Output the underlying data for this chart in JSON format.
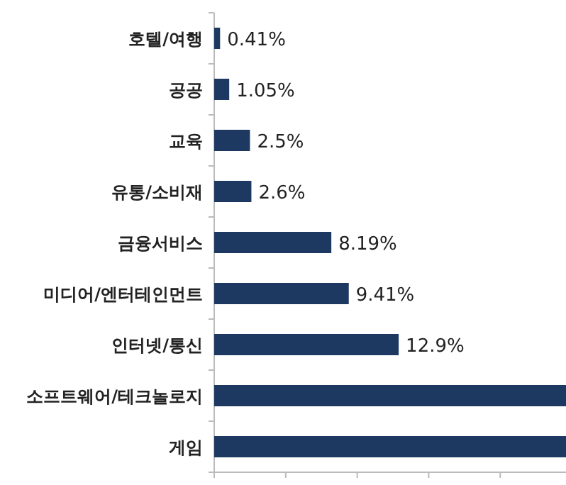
{
  "chart_data": {
    "type": "bar",
    "orientation": "horizontal",
    "categories": [
      "호텔/여행",
      "공공",
      "교육",
      "유통/소비재",
      "금융서비스",
      "미디어/엔터테인먼트",
      "인터넷/통신",
      "소프트웨어/테크놀로지",
      "게임"
    ],
    "values": [
      0.41,
      1.05,
      2.5,
      2.6,
      8.19,
      9.41,
      12.9,
      24.6,
      24.6
    ],
    "value_labels": [
      "0.41%",
      "1.05%",
      "2.5%",
      "2.6%",
      "8.19%",
      "9.41%",
      "12.9%",
      null,
      null
    ],
    "color": "#1d3861",
    "xlim": [
      0,
      24.6
    ],
    "xticks": [
      {
        "value": 0,
        "label": null
      },
      {
        "value": 5,
        "label": null
      },
      {
        "value": 10,
        "label": null
      },
      {
        "value": 15,
        "label": null
      },
      {
        "value": 20,
        "label": null
      }
    ],
    "tick_labels": "y"
  }
}
